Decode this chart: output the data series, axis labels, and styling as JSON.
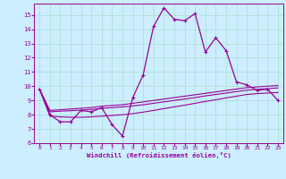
{
  "xlabel": "Windchill (Refroidissement éolien,°C)",
  "background_color": "#cceeff",
  "grid_color": "#aaddcc",
  "line_color": "#990099",
  "x_values": [
    0,
    1,
    2,
    3,
    4,
    5,
    6,
    7,
    8,
    9,
    10,
    11,
    12,
    13,
    14,
    15,
    16,
    17,
    18,
    19,
    20,
    21,
    22,
    23
  ],
  "main_line": [
    9.8,
    8.0,
    7.5,
    7.5,
    8.3,
    8.2,
    8.5,
    7.3,
    6.5,
    9.2,
    10.8,
    14.2,
    15.5,
    14.7,
    14.6,
    15.1,
    12.4,
    13.4,
    12.5,
    10.3,
    10.1,
    9.7,
    9.8,
    9.0
  ],
  "smooth_line1": [
    9.8,
    8.3,
    8.35,
    8.4,
    8.45,
    8.5,
    8.6,
    8.65,
    8.7,
    8.8,
    8.9,
    9.0,
    9.1,
    9.2,
    9.3,
    9.4,
    9.5,
    9.6,
    9.7,
    9.8,
    9.9,
    9.95,
    10.0,
    10.05
  ],
  "smooth_line2": [
    9.8,
    8.2,
    8.25,
    8.28,
    8.32,
    8.37,
    8.44,
    8.5,
    8.55,
    8.62,
    8.7,
    8.8,
    8.9,
    9.0,
    9.1,
    9.2,
    9.32,
    9.42,
    9.52,
    9.62,
    9.72,
    9.78,
    9.83,
    9.88
  ],
  "smooth_line3": [
    9.8,
    7.9,
    7.85,
    7.82,
    7.82,
    7.85,
    7.9,
    7.95,
    8.0,
    8.08,
    8.18,
    8.3,
    8.43,
    8.55,
    8.67,
    8.8,
    8.93,
    9.05,
    9.18,
    9.3,
    9.42,
    9.48,
    9.52,
    9.56
  ],
  "xlim": [
    -0.5,
    23.5
  ],
  "ylim": [
    6,
    15.8
  ],
  "yticks": [
    6,
    7,
    8,
    9,
    10,
    11,
    12,
    13,
    14,
    15
  ],
  "xticks": [
    0,
    1,
    2,
    3,
    4,
    5,
    6,
    7,
    8,
    9,
    10,
    11,
    12,
    13,
    14,
    15,
    16,
    17,
    18,
    19,
    20,
    21,
    22,
    23
  ]
}
